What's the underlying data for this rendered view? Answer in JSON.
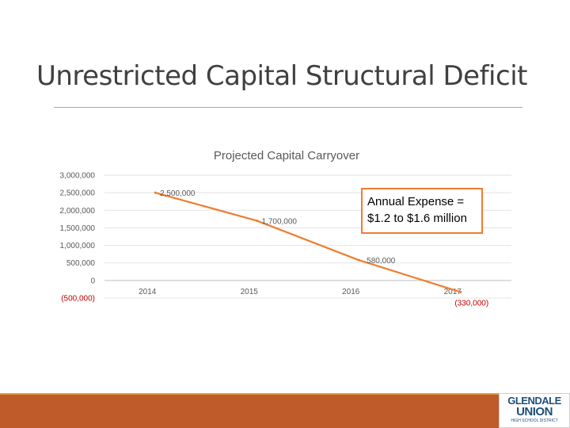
{
  "slide": {
    "title": "Unrestricted Capital Structural Deficit"
  },
  "callout": {
    "line1": "Annual Expense =",
    "line2": "$1.2 to $1.6 million"
  },
  "logo": {
    "line1": "GLENDALE",
    "line2": "UNION",
    "line3": "HIGH SCHOOL DISTRICT"
  },
  "colors": {
    "line": "#ed7d31",
    "negative_text": "#c00000",
    "footer_bar": "#bf5a2a"
  },
  "chart_data": {
    "type": "line",
    "title": "Projected Capital Carryover",
    "categories": [
      "2014",
      "2015",
      "2016",
      "2017"
    ],
    "series": [
      {
        "values": [
          2500000,
          1700000,
          580000,
          -330000
        ]
      }
    ],
    "data_labels": [
      "2,500,000",
      "1,700,000",
      "580,000",
      "(330,000)"
    ],
    "y_ticks": [
      {
        "value": 3000000,
        "label": "3,000,000"
      },
      {
        "value": 2500000,
        "label": "2,500,000"
      },
      {
        "value": 2000000,
        "label": "2,000,000"
      },
      {
        "value": 1500000,
        "label": "1,500,000"
      },
      {
        "value": 1000000,
        "label": "1,000,000"
      },
      {
        "value": 500000,
        "label": "500,000"
      },
      {
        "value": 0,
        "label": "0"
      },
      {
        "value": -500000,
        "label": "(500,000)"
      }
    ],
    "ylim": [
      -500000,
      3000000
    ],
    "grid": true,
    "legend": "none"
  }
}
